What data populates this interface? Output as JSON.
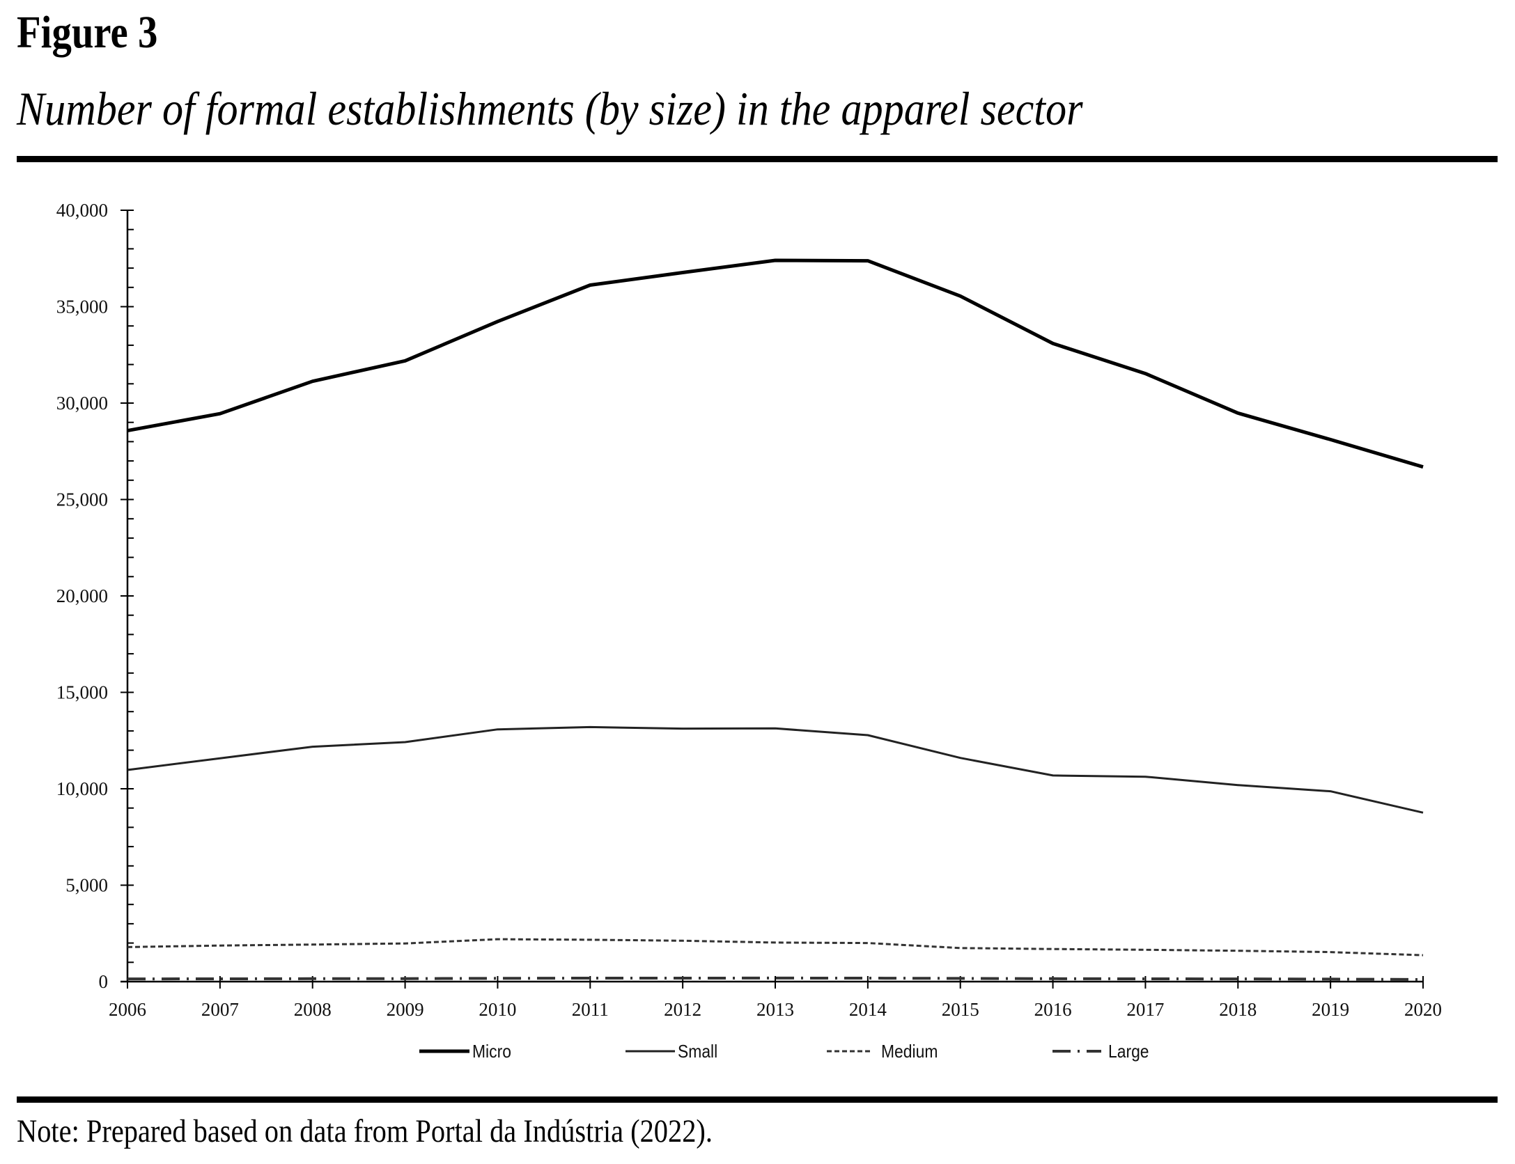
{
  "figure": {
    "label": "Figure 3",
    "title": "Number of formal establishments (by size) in the apparel sector",
    "note": "Note: Prepared based on data from Portal da Indústria (2022)."
  },
  "chart_data": {
    "type": "line",
    "title": "Number of formal establishments (by size) in the apparel sector",
    "xlabel": "",
    "ylabel": "",
    "x": [
      2006,
      2007,
      2008,
      2009,
      2010,
      2011,
      2012,
      2013,
      2014,
      2015,
      2016,
      2017,
      2018,
      2019,
      2020
    ],
    "ylim": [
      0,
      40000
    ],
    "yticks": [
      0,
      5000,
      10000,
      15000,
      20000,
      25000,
      30000,
      35000,
      40000
    ],
    "ytick_labels": [
      "0",
      "5,000",
      "10,000",
      "15,000",
      "20,000",
      "25,000",
      "30,000",
      "35,000",
      "40,000"
    ],
    "minor_ytick_step": 1000,
    "grid": false,
    "legend_position": "bottom",
    "series": [
      {
        "name": "Micro",
        "style": "solid-thick",
        "color": "#000000",
        "values": [
          28570,
          29450,
          31130,
          32190,
          34230,
          36120,
          36770,
          37400,
          37380,
          35550,
          33090,
          31530,
          29480,
          28110,
          26690
        ]
      },
      {
        "name": "Small",
        "style": "solid",
        "color": "#222222",
        "values": [
          10975,
          11580,
          12180,
          12420,
          13080,
          13200,
          13120,
          13130,
          12780,
          11600,
          10690,
          10625,
          10190,
          9870,
          8760
        ]
      },
      {
        "name": "Medium",
        "style": "dashed",
        "color": "#333333",
        "values": [
          1790,
          1870,
          1920,
          1980,
          2200,
          2170,
          2120,
          2025,
          2000,
          1740,
          1690,
          1650,
          1600,
          1530,
          1370
        ]
      },
      {
        "name": "Large",
        "style": "dash-dot",
        "color": "#333333",
        "values": [
          140,
          145,
          150,
          155,
          170,
          180,
          180,
          185,
          180,
          165,
          150,
          145,
          140,
          130,
          110
        ]
      }
    ]
  }
}
